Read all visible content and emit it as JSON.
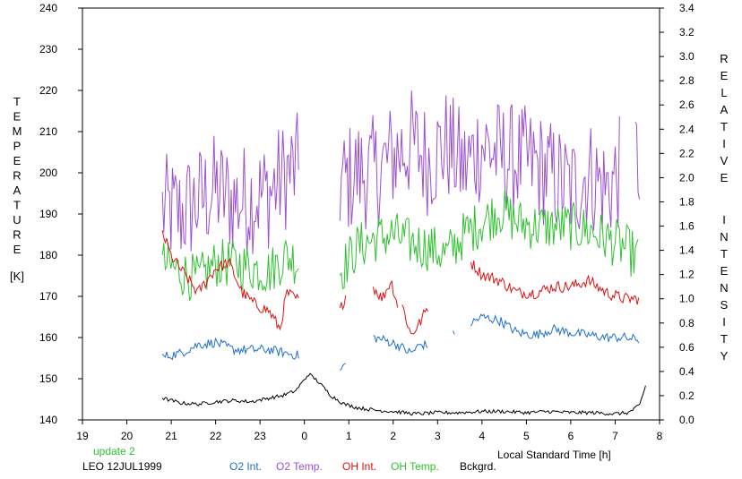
{
  "chart_data": {
    "type": "line",
    "ylabel_left": "TEMPERATURE",
    "ylabel_left_unit": "[K]",
    "ylabel_right": "RELATIVE INTENSITY",
    "xlabel": "Local Standard Time [h]",
    "update_note": "update 2",
    "station_label": "LEO 12JUL1999",
    "x_ticks": [
      "19",
      "20",
      "21",
      "22",
      "23",
      "0",
      "1",
      "2",
      "3",
      "4",
      "5",
      "6",
      "7",
      "8"
    ],
    "ylim_left": [
      140,
      240
    ],
    "y_ticks_left": [
      "140",
      "150",
      "160",
      "170",
      "180",
      "190",
      "200",
      "210",
      "220",
      "230",
      "240"
    ],
    "ylim_right": [
      0.0,
      3.4
    ],
    "y_ticks_right": [
      "0.0",
      "0.2",
      "0.4",
      "0.6",
      "0.8",
      "1.0",
      "1.2",
      "1.4",
      "1.6",
      "1.8",
      "2.0",
      "2.2",
      "2.4",
      "2.6",
      "2.8",
      "3.0",
      "3.2",
      "3.4"
    ],
    "legend": [
      "O2 Int.",
      "O2 Temp.",
      "OH Int.",
      "OH Temp.",
      "Bckgrd."
    ],
    "colors": {
      "O2 Int.": "#1e6fd0",
      "O2 Temp.": "#9c4fd0",
      "OH Int.": "#e01010",
      "OH Temp.": "#30c030",
      "Bckgrd.": "#000000",
      "update": "#30c030"
    },
    "series": [
      {
        "name": "O2 Temp.",
        "axis": "left",
        "noise": 14,
        "segments": [
          {
            "x": [
              20.8,
              21.2,
              21.6,
              22.0,
              22.4,
              22.8,
              23.2,
              23.6,
              23.9
            ],
            "y": [
              191,
              190,
              193,
              196,
              193,
              194,
              195,
              200,
              201
            ]
          },
          {
            "x": [
              0.8,
              1.2,
              1.6,
              2.0,
              2.4,
              2.8,
              3.2,
              3.6,
              4.0,
              4.4,
              4.8,
              5.2,
              5.6,
              6.0,
              6.4,
              6.8,
              7.1
            ],
            "y": [
              197,
              200,
              200,
              204,
              207,
              203,
              207,
              201,
              207,
              204,
              203,
              202,
              199,
              196,
              200,
              196,
              200
            ]
          },
          {
            "x": [
              7.45,
              7.55
            ],
            "y": [
              204,
              202
            ]
          }
        ]
      },
      {
        "name": "OH Temp.",
        "axis": "left",
        "noise": 6,
        "segments": [
          {
            "x": [
              20.8,
              21.2,
              21.6,
              22.0,
              22.4,
              22.8,
              23.2,
              23.6,
              23.9
            ],
            "y": [
              178,
              176,
              174,
              178,
              178,
              177,
              176,
              180,
              178
            ]
          },
          {
            "x": [
              0.8,
              1.2,
              1.6,
              2.0,
              2.4,
              2.8,
              3.2,
              3.6,
              4.0,
              4.4,
              4.8,
              5.2,
              5.6,
              6.0,
              6.4,
              6.8,
              7.2,
              7.55
            ],
            "y": [
              176,
              182,
              184,
              185,
              183,
              182,
              180,
              185,
              188,
              191,
              188,
              187,
              187,
              187,
              186,
              184,
              182,
              179
            ]
          }
        ]
      },
      {
        "name": "OH Int.",
        "axis": "right",
        "noise": 0.05,
        "segments": [
          {
            "x": [
              20.8,
              21.0,
              21.3,
              21.6,
              22.0,
              22.3,
              22.6,
              22.9,
              23.2,
              23.45,
              23.6,
              23.9
            ],
            "y": [
              1.55,
              1.35,
              1.2,
              1.05,
              1.25,
              1.3,
              1.05,
              0.95,
              0.9,
              0.75,
              1.05,
              0.98
            ]
          },
          {
            "x": [
              0.8,
              0.95
            ],
            "y": [
              0.9,
              1.05
            ]
          },
          {
            "x": [
              1.55,
              1.75,
              1.95,
              2.1
            ],
            "y": [
              1.1,
              1.0,
              1.15,
              0.95
            ]
          },
          {
            "x": [
              2.2,
              2.4,
              2.6,
              2.8
            ],
            "y": [
              0.95,
              0.7,
              0.8,
              0.95
            ]
          },
          {
            "x": [
              3.75,
              4.0,
              4.4,
              4.8,
              5.2,
              5.6,
              6.0,
              6.4,
              6.8,
              7.2,
              7.55
            ],
            "y": [
              1.3,
              1.2,
              1.15,
              1.05,
              1.05,
              1.1,
              1.1,
              1.15,
              1.05,
              1.0,
              1.0
            ]
          }
        ]
      },
      {
        "name": "O2 Int.",
        "axis": "right",
        "noise": 0.04,
        "segments": [
          {
            "x": [
              20.8,
              21.2,
              21.6,
              22.0,
              22.4,
              22.8,
              23.2,
              23.6,
              23.9
            ],
            "y": [
              0.52,
              0.55,
              0.62,
              0.64,
              0.58,
              0.58,
              0.58,
              0.55,
              0.53
            ]
          },
          {
            "x": [
              0.8,
              0.95
            ],
            "y": [
              0.4,
              0.48
            ]
          },
          {
            "x": [
              1.55,
              1.8,
              2.1,
              2.4,
              2.6,
              2.8
            ],
            "y": [
              0.68,
              0.66,
              0.62,
              0.55,
              0.62,
              0.62
            ]
          },
          {
            "x": [
              3.35,
              3.4
            ],
            "y": [
              0.7,
              0.7
            ]
          },
          {
            "x": [
              3.75,
              4.0,
              4.4,
              4.8,
              5.2,
              5.6,
              6.0,
              6.4,
              6.8,
              7.2,
              7.55
            ],
            "y": [
              0.8,
              0.85,
              0.82,
              0.72,
              0.7,
              0.75,
              0.72,
              0.7,
              0.68,
              0.68,
              0.66
            ]
          }
        ]
      },
      {
        "name": "Bckgrd.",
        "axis": "right",
        "noise": 0.015,
        "segments": [
          {
            "x": [
              20.8,
              21.2,
              21.6,
              22.0,
              22.4,
              22.8,
              23.2,
              23.5,
              23.8,
              24.1,
              24.3,
              24.6,
              24.9,
              25.2,
              25.6,
              26.0,
              26.5,
              27.0,
              27.5,
              28.0,
              28.5,
              29.0,
              29.5,
              30.0,
              30.5,
              31.0,
              31.3,
              31.55,
              31.7
            ],
            "y": [
              0.18,
              0.14,
              0.13,
              0.15,
              0.16,
              0.15,
              0.18,
              0.2,
              0.24,
              0.38,
              0.32,
              0.2,
              0.13,
              0.1,
              0.08,
              0.07,
              0.05,
              0.06,
              0.06,
              0.07,
              0.07,
              0.06,
              0.07,
              0.06,
              0.06,
              0.05,
              0.06,
              0.12,
              0.3
            ]
          }
        ]
      }
    ]
  }
}
